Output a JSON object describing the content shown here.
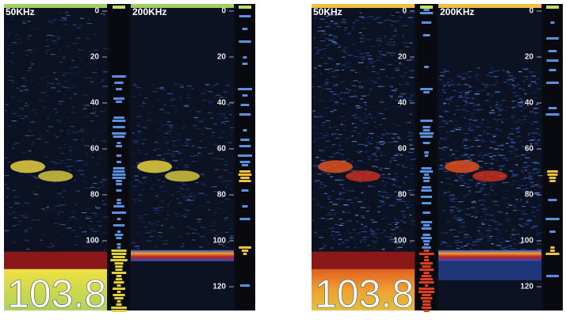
{
  "panels": [
    {
      "channels": [
        {
          "label": "50KHz",
          "depth_ticks": [
            0,
            20,
            40,
            60,
            80,
            100
          ]
        },
        {
          "label": "200KHz",
          "depth_ticks": [
            0,
            20,
            40,
            60,
            80,
            100,
            120
          ]
        }
      ],
      "depth_readout": "103.8"
    },
    {
      "channels": [
        {
          "label": "50KHz",
          "depth_ticks": [
            0,
            20,
            40,
            60,
            80,
            100
          ]
        },
        {
          "label": "200KHz",
          "depth_ticks": [
            0,
            20,
            40,
            60,
            80,
            100,
            120
          ]
        }
      ],
      "depth_readout": "103.8"
    }
  ]
}
